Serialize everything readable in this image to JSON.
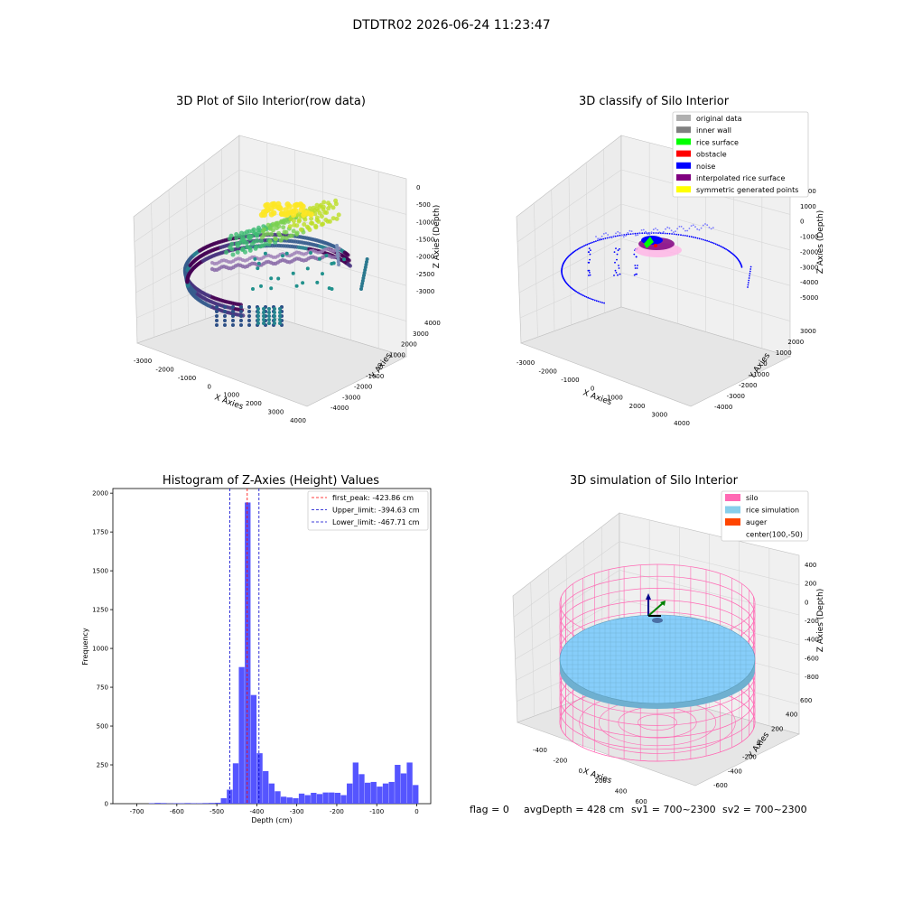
{
  "suptitle": "DTDTR02 2026-06-24 11:23:47",
  "status_line": {
    "flag": "flag = 0",
    "avg": "avgDepth = 428 cm",
    "sv1": "sv1 = 700~2300",
    "sv2": "sv2 = 700~2300"
  },
  "colors": {
    "hist_bar": "#4c4cff",
    "peak_line": "#ff0000",
    "limit_line": "#0000cc",
    "silo_wire": "#ff69b4",
    "rice_surface": "#87cefa",
    "auger": "#ff4500",
    "pane": "#f0f0f0",
    "grid": "#d9d9d9"
  },
  "chart_data": [
    {
      "type": "scatter3d",
      "title": "3D Plot of Silo Interior(row data)",
      "xlabel": "X Axies",
      "ylabel": "Y Axies",
      "zlabel": "Z Axies (Depth)",
      "x_ticks": [
        "-3000",
        "-2000",
        "-1000",
        "0",
        "1000",
        "2000",
        "3000",
        "4000"
      ],
      "y_ticks": [
        "-4000",
        "-3000",
        "-2000",
        "-1000",
        "0",
        "1000",
        "2000",
        "3000",
        "4000"
      ],
      "z_ticks": [
        "0",
        "-500",
        "-1000",
        "-1500",
        "-2000",
        "-2500",
        "-3000"
      ],
      "zlim": [
        -3300,
        200
      ],
      "colormap": "viridis",
      "grid": true
    },
    {
      "type": "scatter3d",
      "title": "3D classify of Silo Interior",
      "xlabel": "X Axies",
      "ylabel": "Y Axies",
      "zlabel": "Z Axies (Depth)",
      "x_ticks": [
        "-3000",
        "-2000",
        "-1000",
        "0",
        "1000",
        "2000",
        "3000",
        "4000"
      ],
      "y_ticks": [
        "-4000",
        "-3000",
        "-2000",
        "-1000",
        "0",
        "1000",
        "2000",
        "3000"
      ],
      "z_ticks": [
        "2000",
        "1000",
        "0",
        "-1000",
        "-2000",
        "-3000",
        "-4000",
        "-5000"
      ],
      "legend_position": "top-right",
      "legend": [
        {
          "label": "original data",
          "color": "#b0b0b0"
        },
        {
          "label": "inner wall",
          "color": "#808080"
        },
        {
          "label": "rice surface",
          "color": "#00ff00"
        },
        {
          "label": "obstacle",
          "color": "#ff0000"
        },
        {
          "label": "noise",
          "color": "#0000ff"
        },
        {
          "label": "interpolated rice surface",
          "color": "#800080"
        },
        {
          "label": "symmetric generated points",
          "color": "#ffff00"
        }
      ],
      "grid": true
    },
    {
      "type": "bar",
      "title": "Histogram of Z-Axies (Height) Values",
      "xlabel": "Depth (cm)",
      "ylabel": "Frequency",
      "xlim": [
        -760,
        35
      ],
      "ylim": [
        0,
        2030
      ],
      "x_ticks": [
        -700,
        -600,
        -500,
        -400,
        -300,
        -200,
        -100,
        0
      ],
      "y_ticks": [
        0,
        250,
        500,
        750,
        1000,
        1250,
        1500,
        1750,
        2000
      ],
      "bin_width": 15,
      "bins": [
        {
          "start": -670,
          "value": 3
        },
        {
          "start": -655,
          "value": 5
        },
        {
          "start": -640,
          "value": 4
        },
        {
          "start": -625,
          "value": 2
        },
        {
          "start": -610,
          "value": 3
        },
        {
          "start": -595,
          "value": 3
        },
        {
          "start": -580,
          "value": 4
        },
        {
          "start": -565,
          "value": 3
        },
        {
          "start": -550,
          "value": 3
        },
        {
          "start": -535,
          "value": 4
        },
        {
          "start": -520,
          "value": 5
        },
        {
          "start": -505,
          "value": 6
        },
        {
          "start": -490,
          "value": 35
        },
        {
          "start": -475,
          "value": 90
        },
        {
          "start": -460,
          "value": 260
        },
        {
          "start": -445,
          "value": 880
        },
        {
          "start": -430,
          "value": 1940
        },
        {
          "start": -415,
          "value": 700
        },
        {
          "start": -400,
          "value": 325
        },
        {
          "start": -385,
          "value": 210
        },
        {
          "start": -370,
          "value": 130
        },
        {
          "start": -355,
          "value": 80
        },
        {
          "start": -340,
          "value": 45
        },
        {
          "start": -325,
          "value": 40
        },
        {
          "start": -310,
          "value": 35
        },
        {
          "start": -295,
          "value": 65
        },
        {
          "start": -280,
          "value": 55
        },
        {
          "start": -265,
          "value": 70
        },
        {
          "start": -250,
          "value": 62
        },
        {
          "start": -235,
          "value": 72
        },
        {
          "start": -220,
          "value": 72
        },
        {
          "start": -205,
          "value": 70
        },
        {
          "start": -190,
          "value": 55
        },
        {
          "start": -175,
          "value": 130
        },
        {
          "start": -160,
          "value": 265
        },
        {
          "start": -145,
          "value": 190
        },
        {
          "start": -130,
          "value": 135
        },
        {
          "start": -115,
          "value": 140
        },
        {
          "start": -100,
          "value": 110
        },
        {
          "start": -85,
          "value": 130
        },
        {
          "start": -70,
          "value": 140
        },
        {
          "start": -55,
          "value": 250
        },
        {
          "start": -40,
          "value": 195
        },
        {
          "start": -25,
          "value": 265
        },
        {
          "start": -10,
          "value": 120
        }
      ],
      "vlines": [
        {
          "x": -423.86,
          "label": "first_peak: -423.86 cm",
          "color": "#ff0000"
        },
        {
          "x": -394.63,
          "label": "Upper_limit: -394.63 cm",
          "color": "#0000cc"
        },
        {
          "x": -467.71,
          "label": "Lower_limit: -467.71 cm",
          "color": "#0000cc"
        }
      ],
      "legend_position": "top-right"
    },
    {
      "type": "surface3d",
      "title": "3D simulation of Silo Interior",
      "xlabel": "X Axies",
      "ylabel": "Y Axies",
      "zlabel": "Z Axies (Depth)",
      "x_ticks": [
        "-400",
        "-200",
        "0",
        "200",
        "400",
        "600"
      ],
      "y_ticks": [
        "-600",
        "-400",
        "-200",
        "0",
        "200",
        "400",
        "600"
      ],
      "z_ticks": [
        "400",
        "200",
        "0",
        "-200",
        "-400",
        "-600",
        "-800"
      ],
      "legend_position": "top-right",
      "legend": [
        {
          "label": "silo",
          "color": "#ff69b4"
        },
        {
          "label": "rice simulation",
          "color": "#87ceeb"
        },
        {
          "label": "auger",
          "color": "#ff4500"
        },
        {
          "label": "center(100,-50)",
          "color": "none"
        }
      ],
      "grid": true
    }
  ]
}
